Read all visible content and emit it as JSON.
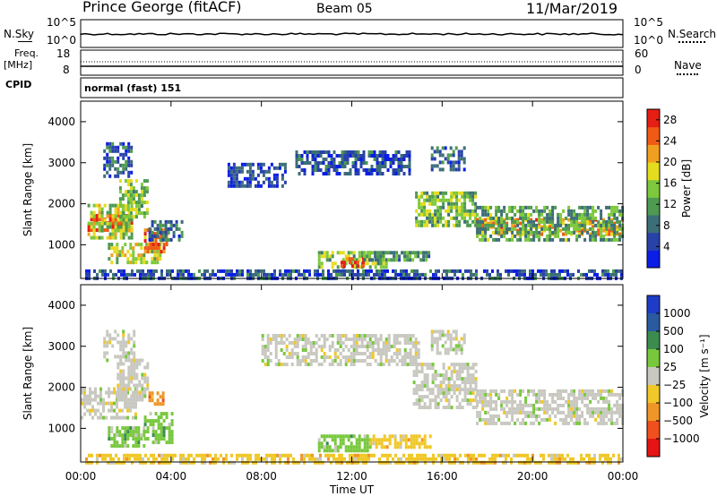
{
  "header": {
    "station": "Prince George (fitACF)",
    "beam": "Beam 05",
    "date": "11/Mar/2019"
  },
  "panels": {
    "nsky": {
      "label": "N.Sky",
      "left_ticks": [
        "10^5",
        "10^0"
      ],
      "right_ticks": [
        "10^5",
        "10^0"
      ],
      "right_label": "N.Search"
    },
    "freq": {
      "label_line1": "Freq.",
      "label_line2": "[MHz]",
      "left_ticks": [
        "18",
        "8"
      ],
      "right_ticks": [
        "60",
        "0"
      ],
      "right_label": "Nave"
    },
    "cpid": {
      "label": "CPID",
      "value": "normal (fast) 151"
    }
  },
  "colors": {
    "power_scale": [
      "#0a1ee6",
      "#2842aa",
      "#3c6e78",
      "#4e9a50",
      "#7dc83c",
      "#e6dc1e",
      "#f0a01e",
      "#f05a14",
      "#e61e14"
    ],
    "velocity_scale": [
      "#1e3cc8",
      "#2a5aa0",
      "#3c8c50",
      "#78c83c",
      "#c8c8c0",
      "#f0c828",
      "#f09628",
      "#f0501e",
      "#e61414"
    ]
  },
  "chart_data": [
    {
      "type": "heatmap",
      "name": "power",
      "xlabel": "Time UT",
      "ylabel": "Slant Range [km]",
      "x_ticks": [
        "00:00",
        "04:00",
        "08:00",
        "12:00",
        "16:00",
        "20:00",
        "00:00"
      ],
      "y_ticks": [
        "1000",
        "2000",
        "3000",
        "4000"
      ],
      "xlim": [
        0,
        24
      ],
      "ylim": [
        180,
        4500
      ],
      "colorbar_label": "Power [dB]",
      "colorbar_ticks": [
        "4",
        "8",
        "12",
        "16",
        "20",
        "24",
        "28"
      ],
      "colorbar_range": [
        0,
        30
      ],
      "regions": [
        {
          "t0": 0.3,
          "t1": 2.3,
          "r0": 1350,
          "r1": 1750,
          "v": 27
        },
        {
          "t0": 0.3,
          "t1": 2.3,
          "r0": 1200,
          "r1": 2000,
          "v": 16
        },
        {
          "t0": 1.7,
          "t1": 3.0,
          "r0": 1700,
          "r1": 2600,
          "v": 14
        },
        {
          "t0": 1.2,
          "t1": 3.5,
          "r0": 550,
          "r1": 1050,
          "v": 17
        },
        {
          "t0": 2.8,
          "t1": 3.8,
          "r0": 800,
          "r1": 1400,
          "v": 24
        },
        {
          "t0": 3.0,
          "t1": 4.5,
          "r0": 1100,
          "r1": 1600,
          "v": 8
        },
        {
          "t0": 1.0,
          "t1": 2.2,
          "r0": 2700,
          "r1": 3500,
          "v": 7
        },
        {
          "t0": 6.5,
          "t1": 9.0,
          "r0": 2400,
          "r1": 3000,
          "v": 5
        },
        {
          "t0": 9.5,
          "t1": 14.5,
          "r0": 2700,
          "r1": 3300,
          "v": 6
        },
        {
          "t0": 10.5,
          "t1": 13.5,
          "r0": 450,
          "r1": 850,
          "v": 14
        },
        {
          "t0": 11.5,
          "t1": 12.5,
          "r0": 500,
          "r1": 700,
          "v": 28
        },
        {
          "t0": 12.5,
          "t1": 15.5,
          "r0": 650,
          "r1": 850,
          "v": 11
        },
        {
          "t0": 14.8,
          "t1": 17.5,
          "r0": 1500,
          "r1": 2300,
          "v": 14
        },
        {
          "t0": 17.5,
          "t1": 24.0,
          "r0": 1300,
          "r1": 1650,
          "v": 22
        },
        {
          "t0": 17.5,
          "t1": 24.0,
          "r0": 1100,
          "r1": 1950,
          "v": 12
        },
        {
          "t0": 15.5,
          "t1": 17.0,
          "r0": 2800,
          "r1": 3400,
          "v": 7
        },
        {
          "t0": 0.2,
          "t1": 24.0,
          "r0": 180,
          "r1": 400,
          "v": 6
        }
      ]
    },
    {
      "type": "heatmap",
      "name": "velocity",
      "xlabel": "Time UT",
      "ylabel": "Slant Range [km]",
      "x_ticks": [
        "00:00",
        "04:00",
        "08:00",
        "12:00",
        "16:00",
        "20:00",
        "00:00"
      ],
      "y_ticks": [
        "1000",
        "2000",
        "3000",
        "4000"
      ],
      "xlim": [
        0,
        24
      ],
      "ylim": [
        180,
        4500
      ],
      "colorbar_label": "Velocity [m s⁻¹]",
      "colorbar_ticks": [
        "1000",
        "500",
        "100",
        "25",
        "−25",
        "−100",
        "−500",
        "−1000"
      ],
      "regions": [
        {
          "t0": 0.0,
          "t1": 2.4,
          "r0": 1300,
          "r1": 2000,
          "c": 4
        },
        {
          "t0": 1.6,
          "t1": 3.0,
          "r0": 1700,
          "r1": 2700,
          "c": 4
        },
        {
          "t0": 1.0,
          "t1": 2.4,
          "r0": 2700,
          "r1": 3400,
          "c": 4
        },
        {
          "t0": 1.2,
          "t1": 2.8,
          "r0": 550,
          "r1": 1050,
          "c": 3
        },
        {
          "t0": 2.8,
          "t1": 4.0,
          "r0": 700,
          "r1": 1400,
          "c": 3
        },
        {
          "t0": 3.0,
          "t1": 3.6,
          "r0": 1600,
          "r1": 1900,
          "c": 6
        },
        {
          "t0": 8.0,
          "t1": 15.0,
          "r0": 2600,
          "r1": 3300,
          "c": 4
        },
        {
          "t0": 10.5,
          "t1": 12.8,
          "r0": 500,
          "r1": 850,
          "c": 3
        },
        {
          "t0": 12.8,
          "t1": 15.5,
          "r0": 550,
          "r1": 850,
          "c": 5
        },
        {
          "t0": 14.7,
          "t1": 17.5,
          "r0": 1500,
          "r1": 2600,
          "c": 4
        },
        {
          "t0": 17.5,
          "t1": 24.0,
          "r0": 1150,
          "r1": 1950,
          "c": 4
        },
        {
          "t0": 15.5,
          "t1": 17.0,
          "r0": 2800,
          "r1": 3400,
          "c": 4
        },
        {
          "t0": 0.2,
          "t1": 24.0,
          "r0": 180,
          "r1": 380,
          "c": 5
        }
      ]
    }
  ]
}
